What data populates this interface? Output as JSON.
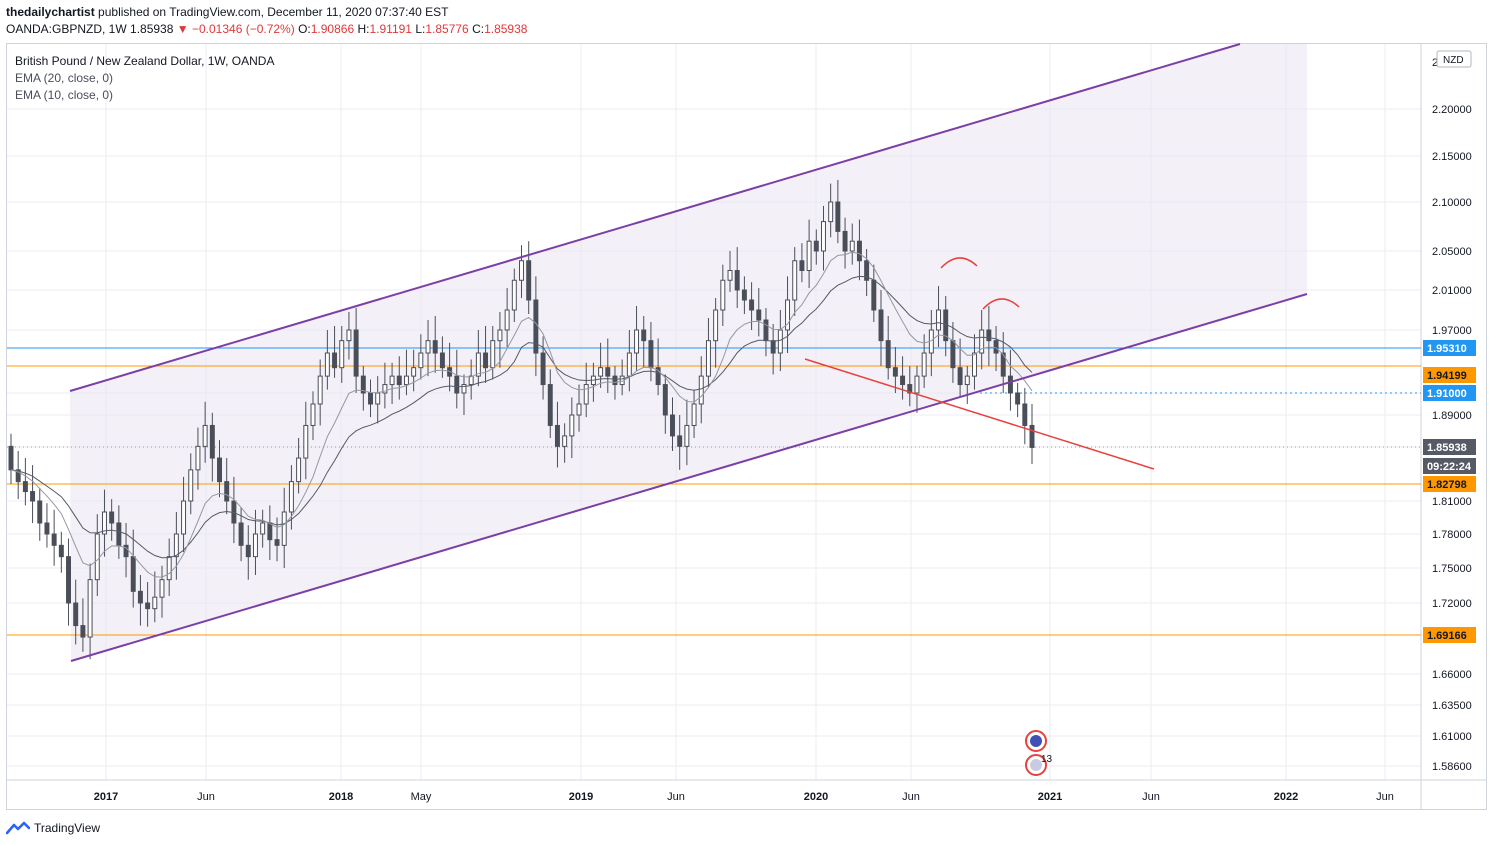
{
  "header": {
    "author": "thedailychartist",
    "published": "published on TradingView.com, December 11, 2020 07:37:40 EST",
    "symbol_line": "OANDA:GBPNZD, 1W",
    "last": "1.85938",
    "change": "▼ −0.01346 (−0.72%)",
    "o_label": "O:",
    "o": "1.90866",
    "h_label": "H:",
    "h": "1.91191",
    "l_label": "L:",
    "l": "1.85776",
    "c_label": "C:",
    "c": "1.85938"
  },
  "legend": {
    "title": "British Pound / New Zealand Dollar, 1W, OANDA",
    "ema20": "EMA (20, close, 0)",
    "ema10": "EMA (10, close, 0)"
  },
  "footer": {
    "brand": "TradingView"
  },
  "chart_data": {
    "type": "candlestick",
    "currency": "NZD",
    "y_ticks": [
      "1.58600",
      "1.61000",
      "1.63500",
      "1.66000",
      "1.69166",
      "1.72000",
      "1.75000",
      "1.78000",
      "1.81000",
      "1.82798",
      "1.85938",
      "1.89000",
      "1.91000",
      "1.94199",
      "1.95310",
      "1.97000",
      "2.01000",
      "2.05000",
      "2.10000",
      "2.15000",
      "2.20000"
    ],
    "x_ticks": [
      "2017",
      "Jun",
      "2018",
      "May",
      "2019",
      "Jun",
      "2020",
      "Jun",
      "2021",
      "Jun",
      "2022",
      "Jun"
    ],
    "price_labels": [
      {
        "value": "1.95310",
        "color": "#2196f3"
      },
      {
        "value": "1.94199",
        "color": "#ff9800"
      },
      {
        "value": "1.91000",
        "color": "#2196f3"
      },
      {
        "value": "1.85938",
        "color": "#555a66"
      },
      {
        "value": "09:22:24",
        "color": "#555a66"
      },
      {
        "value": "1.82798",
        "color": "#ff9800"
      },
      {
        "value": "1.69166",
        "color": "#ff9800"
      }
    ],
    "horizontal_levels": [
      {
        "price": 1.9531,
        "color": "#2196f3",
        "style": "solid"
      },
      {
        "price": 1.94199,
        "color": "#ff9800",
        "style": "solid"
      },
      {
        "price": 1.91,
        "color": "#2196f3",
        "style": "dotted"
      },
      {
        "price": 1.82798,
        "color": "#ff9800",
        "style": "solid"
      },
      {
        "price": 1.69166,
        "color": "#ff9800",
        "style": "solid"
      }
    ],
    "event_badge": "13",
    "colors": {
      "candle": "#4a4e59",
      "channel": "#7b3fa6",
      "neckline": "#e8413c",
      "grid": "#eceef2"
    },
    "closes": [
      1.84,
      1.83,
      1.82,
      1.81,
      1.79,
      1.78,
      1.77,
      1.76,
      1.72,
      1.7,
      1.69,
      1.74,
      1.78,
      1.8,
      1.79,
      1.77,
      1.76,
      1.73,
      1.72,
      1.715,
      1.725,
      1.74,
      1.76,
      1.78,
      1.81,
      1.84,
      1.86,
      1.88,
      1.85,
      1.83,
      1.81,
      1.79,
      1.77,
      1.76,
      1.78,
      1.79,
      1.775,
      1.77,
      1.8,
      1.83,
      1.85,
      1.88,
      1.9,
      1.93,
      1.95,
      1.94,
      1.96,
      1.97,
      1.93,
      1.91,
      1.9,
      1.91,
      1.92,
      1.93,
      1.92,
      1.93,
      1.94,
      1.95,
      1.96,
      1.95,
      1.94,
      1.93,
      1.91,
      1.92,
      1.93,
      1.95,
      1.94,
      1.96,
      1.97,
      1.99,
      2.02,
      2.04,
      2.0,
      1.95,
      1.92,
      1.88,
      1.86,
      1.87,
      1.89,
      1.9,
      1.92,
      1.93,
      1.94,
      1.93,
      1.92,
      1.93,
      1.95,
      1.97,
      1.96,
      1.94,
      1.92,
      1.89,
      1.87,
      1.86,
      1.88,
      1.9,
      1.93,
      1.96,
      1.99,
      2.02,
      2.03,
      2.01,
      2.0,
      1.99,
      1.98,
      1.96,
      1.95,
      1.97,
      2.0,
      2.04,
      2.03,
      2.06,
      2.05,
      2.08,
      2.1,
      2.07,
      2.05,
      2.06,
      2.04,
      2.02,
      1.99,
      1.96,
      1.94,
      1.93,
      1.92,
      1.91,
      1.93,
      1.95,
      1.97,
      1.99,
      1.96,
      1.94,
      1.92,
      1.93,
      1.95,
      1.97,
      1.96,
      1.95,
      1.93,
      1.91,
      1.9,
      1.88,
      1.859
    ],
    "ema20_note": "",
    "ema10_note": ""
  }
}
